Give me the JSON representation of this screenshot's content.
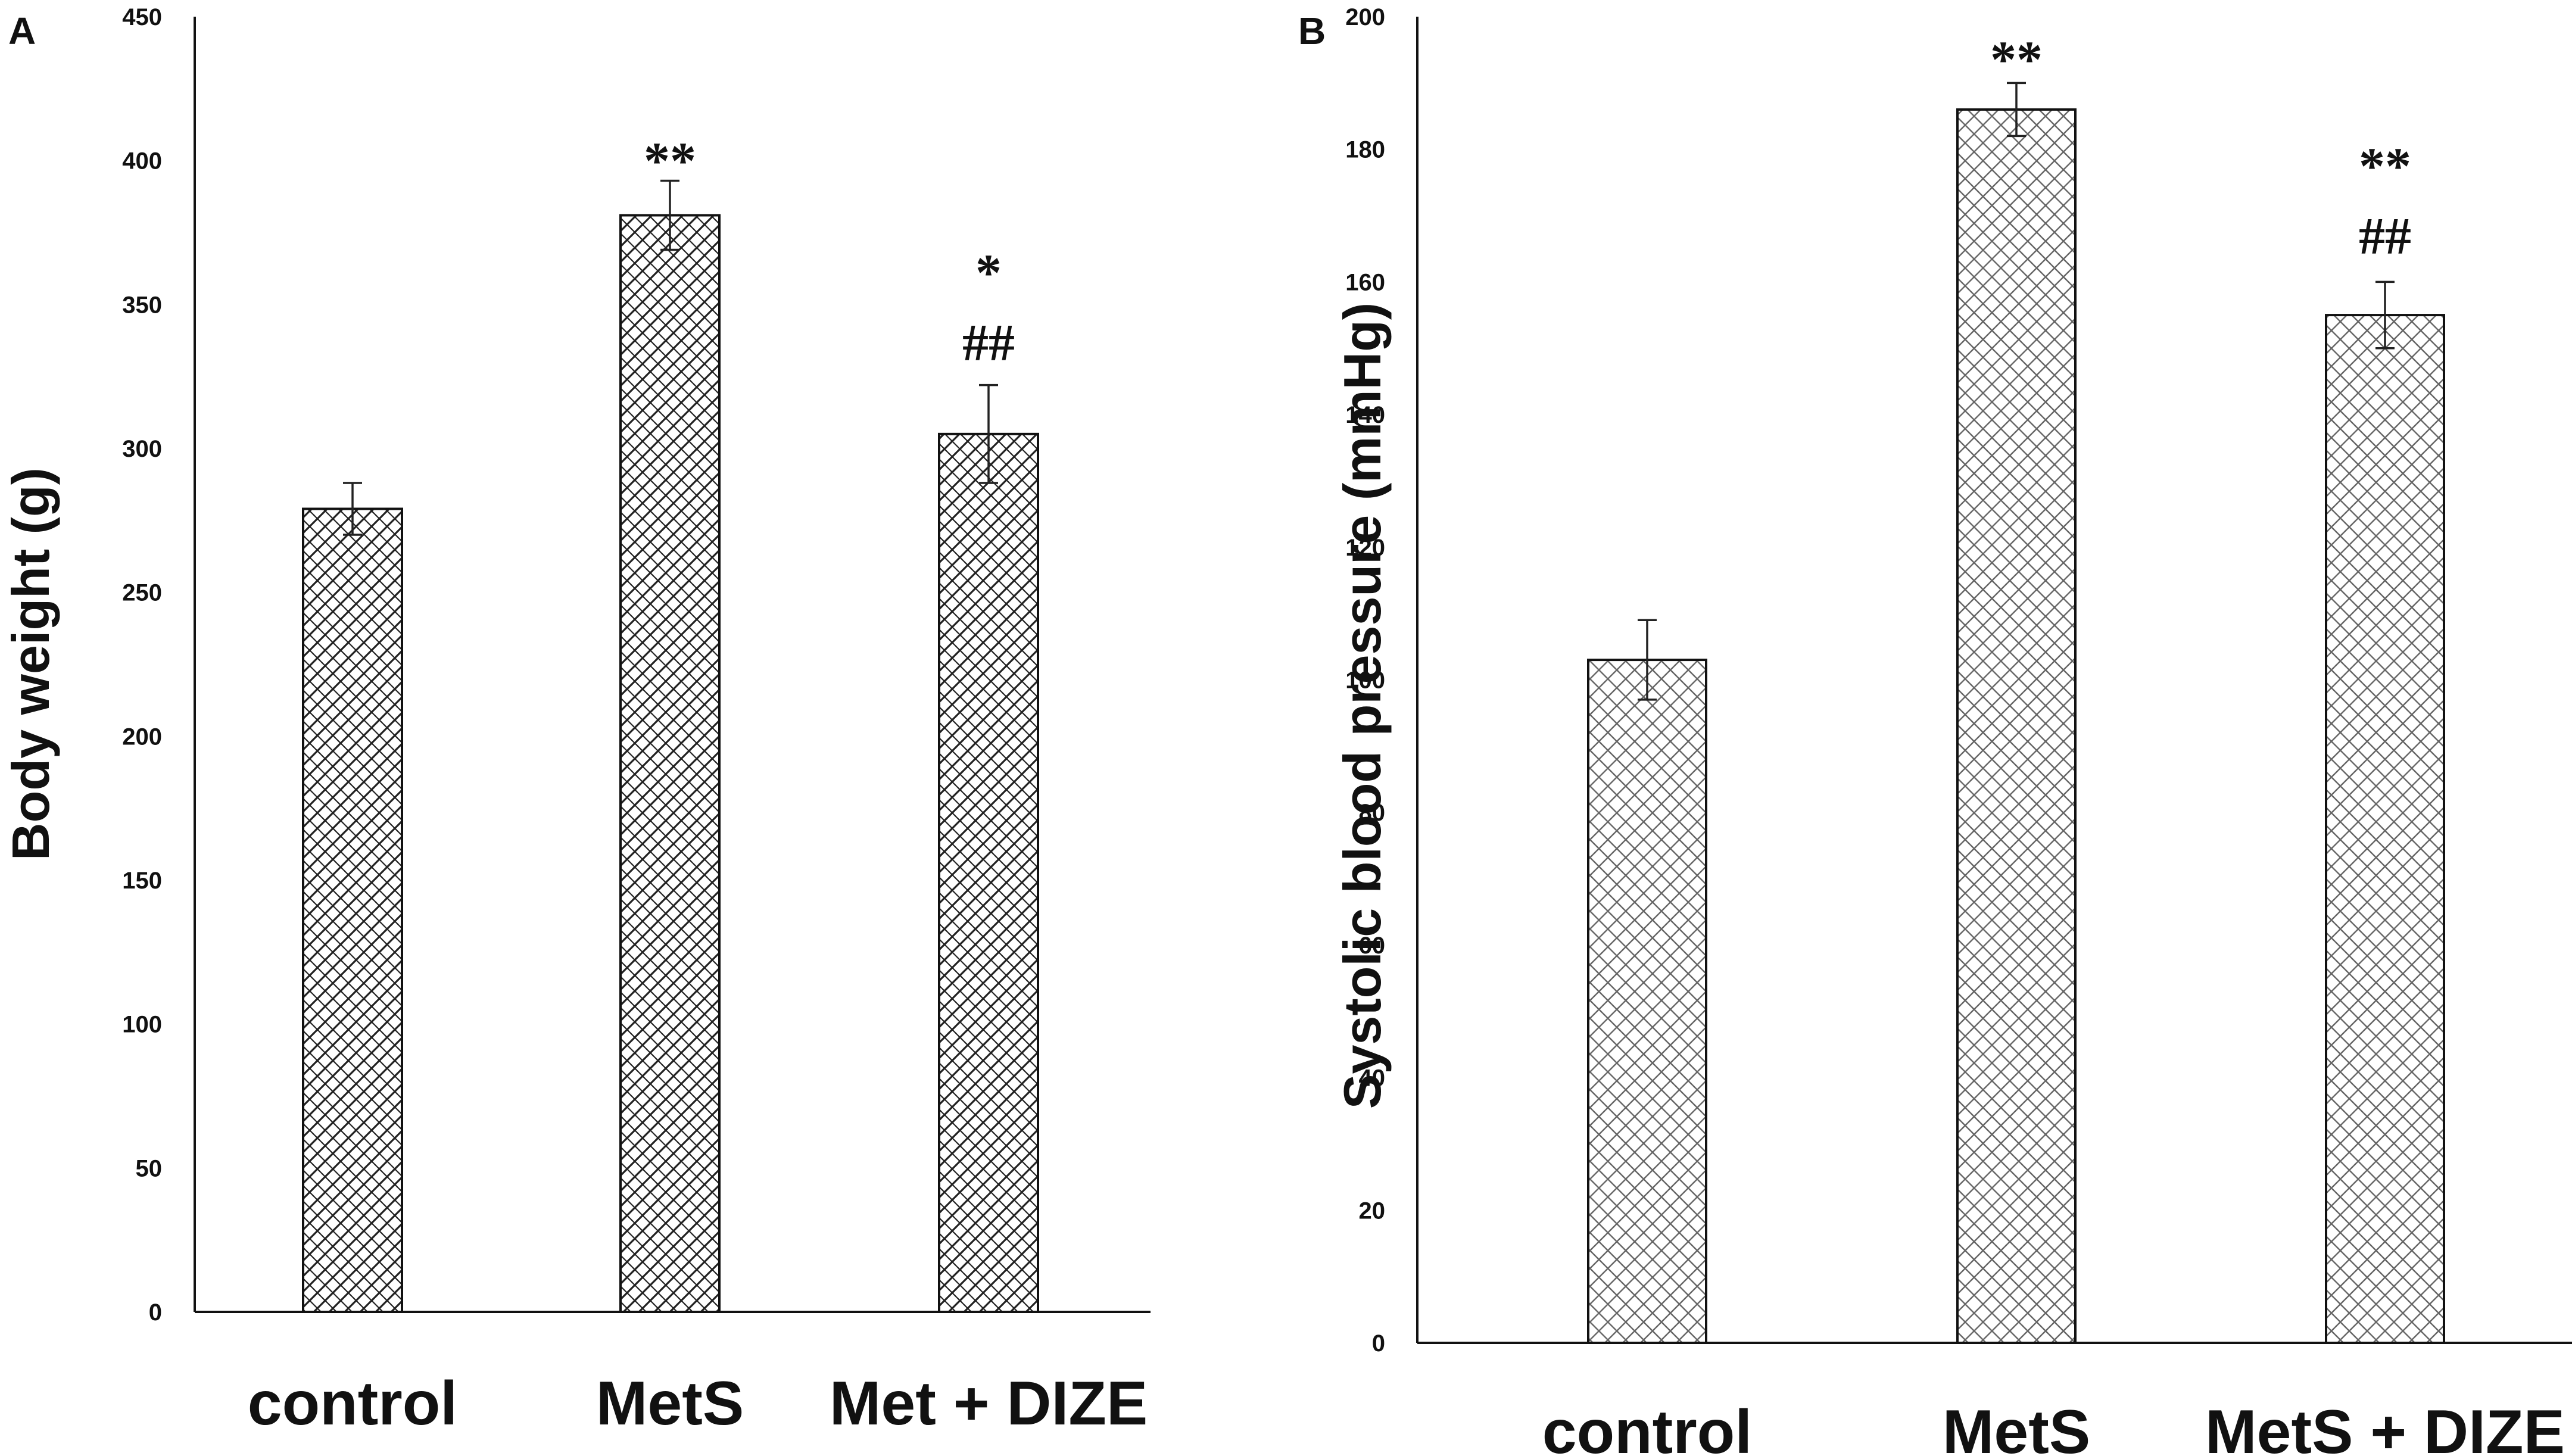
{
  "colors": {
    "axis": "#111111",
    "bar_fill": "#ffffff",
    "hatch_a": "#222222",
    "hatch_b": "#555555"
  },
  "chart_data": [
    {
      "panel": "A",
      "type": "bar",
      "hatch": "brick-crosshatch",
      "title": "",
      "xlabel": "",
      "ylabel": "Body weight (g)",
      "ylim": [
        0,
        450
      ],
      "yticks": [
        0,
        50,
        100,
        150,
        200,
        250,
        300,
        350,
        400,
        450
      ],
      "grid": false,
      "categories": [
        "control",
        "MetS",
        "Met + DIZE"
      ],
      "values": [
        279,
        381,
        305
      ],
      "errors": [
        9,
        12,
        17
      ],
      "annotations": [
        {
          "category_index": 1,
          "lines": [
            "**"
          ]
        },
        {
          "category_index": 2,
          "lines": [
            "*",
            "##"
          ]
        }
      ]
    },
    {
      "panel": "B",
      "type": "bar",
      "hatch": "diagonal-crosshatch",
      "title": "",
      "xlabel": "",
      "ylabel": "Systolic blood pressure (mmHg)",
      "ylim": [
        0,
        200
      ],
      "yticks": [
        0,
        20,
        40,
        60,
        80,
        100,
        120,
        140,
        160,
        180,
        200
      ],
      "grid": false,
      "categories": [
        "control",
        "MetS",
        "MetS + DIZE"
      ],
      "values": [
        103,
        186,
        155
      ],
      "errors": [
        6,
        4,
        5
      ],
      "annotations": [
        {
          "category_index": 1,
          "lines": [
            "**"
          ]
        },
        {
          "category_index": 2,
          "lines": [
            "**",
            "##"
          ]
        }
      ]
    }
  ]
}
